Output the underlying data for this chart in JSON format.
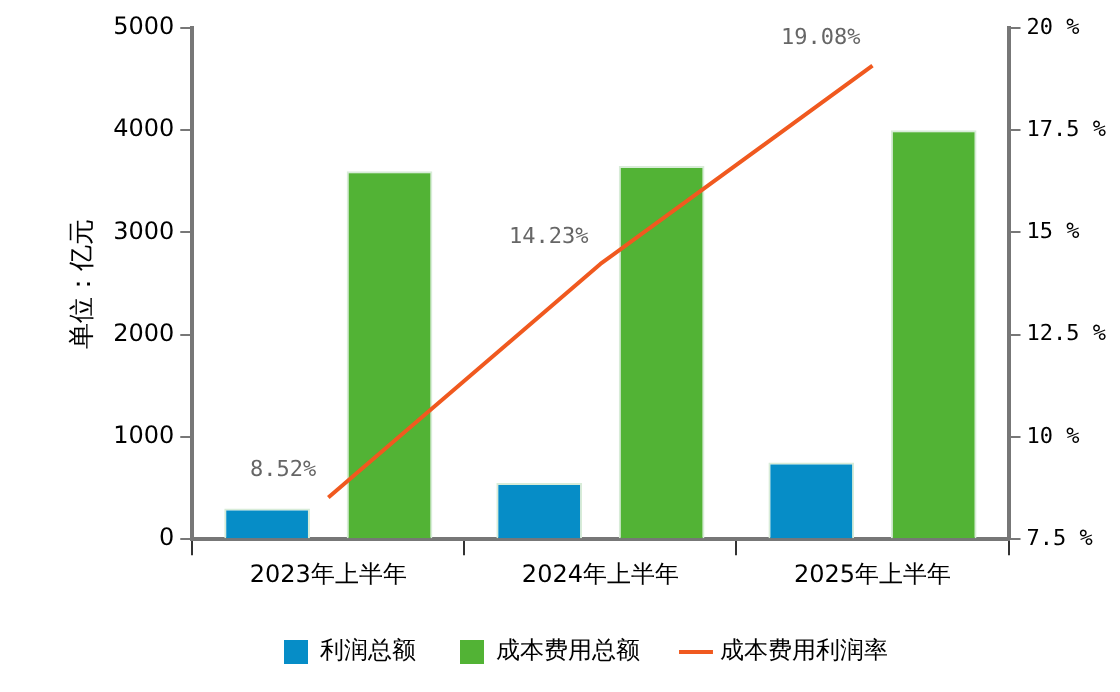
{
  "chart_data": {
    "type": "bar",
    "ylabel": "单位：亿元",
    "categories": [
      "2023年上半年",
      "2024年上半年",
      "2025年上半年"
    ],
    "series": [
      {
        "name": "利润总额",
        "color": "#068dc7",
        "values": [
          300,
          550,
          750
        ]
      },
      {
        "name": "成本费用总额",
        "color": "#52b335",
        "values": [
          3600,
          3650,
          4000
        ]
      },
      {
        "name": "成本费用利润率",
        "type": "line",
        "axis": "y2",
        "color": "#f0591f",
        "values": [
          8.52,
          14.23,
          19.08
        ],
        "value_labels": [
          "8.52%",
          "14.23%",
          "19.08%"
        ]
      }
    ],
    "ylim": [
      0,
      5000
    ],
    "yticks": [
      0,
      1000,
      2000,
      3000,
      4000,
      5000
    ],
    "y2lim": [
      7.5,
      20
    ],
    "y2ticks": [
      {
        "value": 7.5,
        "label": "7.5 %"
      },
      {
        "value": 10,
        "label": "10 %"
      },
      {
        "value": 12.5,
        "label": "12.5 %"
      },
      {
        "value": 15,
        "label": "15 %"
      },
      {
        "value": 17.5,
        "label": "17.5 %"
      },
      {
        "value": 20,
        "label": "20 %"
      }
    ],
    "grid": false,
    "legend": "bottom",
    "marker": "none"
  }
}
